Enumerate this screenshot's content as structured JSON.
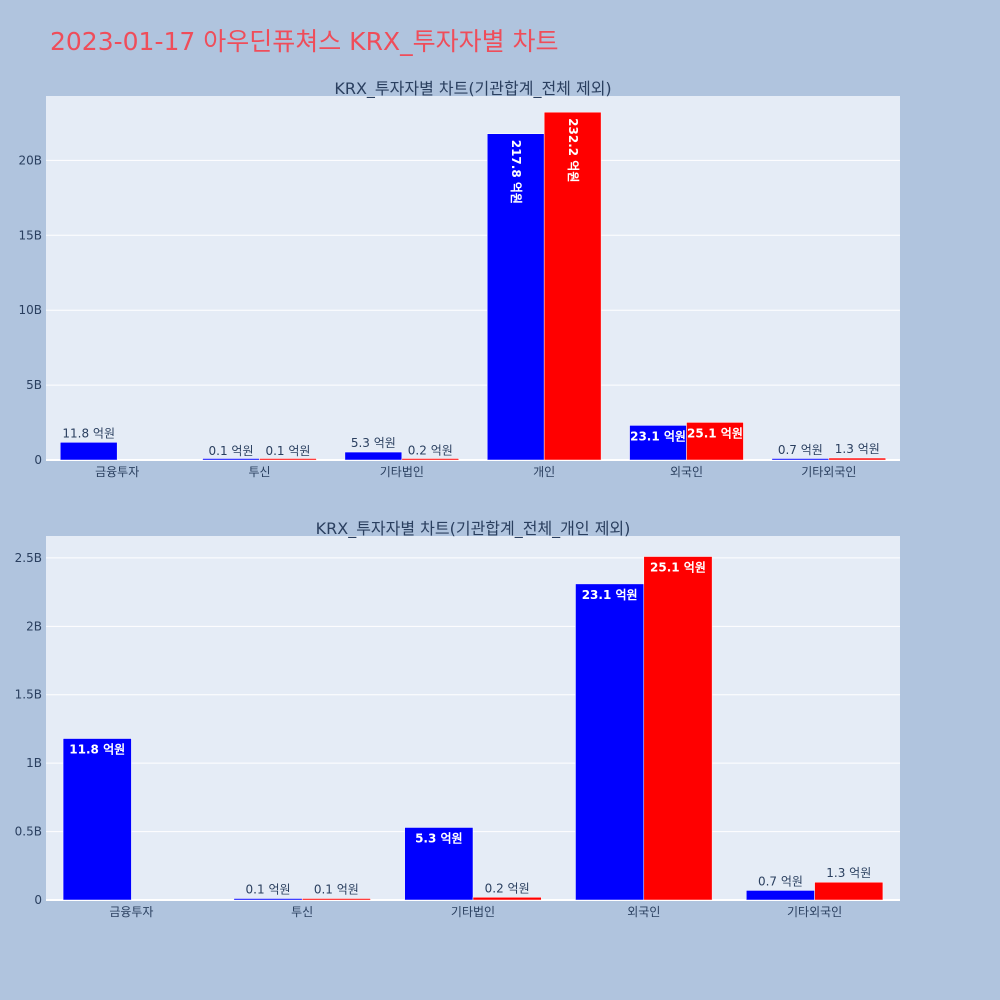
{
  "page": {
    "title": "2023-01-17 아우딘퓨쳐스 KRX_투자자별 차트"
  },
  "colors": {
    "series_a": "#0000ff",
    "series_b": "#ff0000",
    "plot_bg": "#e5ecf6",
    "page_bg": "#b0c4de",
    "title": "#ef4d5a"
  },
  "chart_data": [
    {
      "type": "bar",
      "title": "KRX_투자자별 차트(기관합계_전체 제외)",
      "categories": [
        "금융투자",
        "투신",
        "기타법인",
        "개인",
        "외국인",
        "기타외국인"
      ],
      "series": [
        {
          "color": "#0000ff",
          "values": [
            1180000000,
            10000000,
            530000000,
            21780000000,
            2310000000,
            70000000
          ],
          "labels": [
            "11.8 억원",
            "0.1 억원",
            "5.3 억원",
            "217.8 억원",
            "23.1 억원",
            "0.7 억원"
          ]
        },
        {
          "color": "#ff0000",
          "values": [
            null,
            10000000,
            20000000,
            23220000000,
            2510000000,
            130000000
          ],
          "labels": [
            "",
            "0.1 억원",
            "0.2 억원",
            "232.2 억원",
            "25.1 억원",
            "1.3 억원"
          ]
        }
      ],
      "y_ticks": [
        "0",
        "5B",
        "10B",
        "15B",
        "20B"
      ],
      "y_tick_values": [
        0,
        5000000000,
        10000000000,
        15000000000,
        20000000000
      ],
      "ylim": [
        0,
        24300000000
      ],
      "grid": true,
      "legend": "none"
    },
    {
      "type": "bar",
      "title": "KRX_투자자별 차트(기관합계_전체_개인 제외)",
      "categories": [
        "금융투자",
        "투신",
        "기타법인",
        "외국인",
        "기타외국인"
      ],
      "series": [
        {
          "color": "#0000ff",
          "values": [
            1180000000,
            10000000,
            530000000,
            2310000000,
            70000000
          ],
          "labels": [
            "11.8 억원",
            "0.1 억원",
            "5.3 억원",
            "23.1 억원",
            "0.7 억원"
          ]
        },
        {
          "color": "#ff0000",
          "values": [
            null,
            10000000,
            20000000,
            2510000000,
            130000000
          ],
          "labels": [
            "",
            "0.1 억원",
            "0.2 억원",
            "25.1 억원",
            "1.3 억원"
          ]
        }
      ],
      "y_ticks": [
        "0",
        "0.5B",
        "1B",
        "1.5B",
        "2B",
        "2.5B"
      ],
      "y_tick_values": [
        0,
        500000000,
        1000000000,
        1500000000,
        2000000000,
        2500000000
      ],
      "ylim": [
        0,
        2660000000
      ],
      "grid": true,
      "legend": "none"
    }
  ]
}
